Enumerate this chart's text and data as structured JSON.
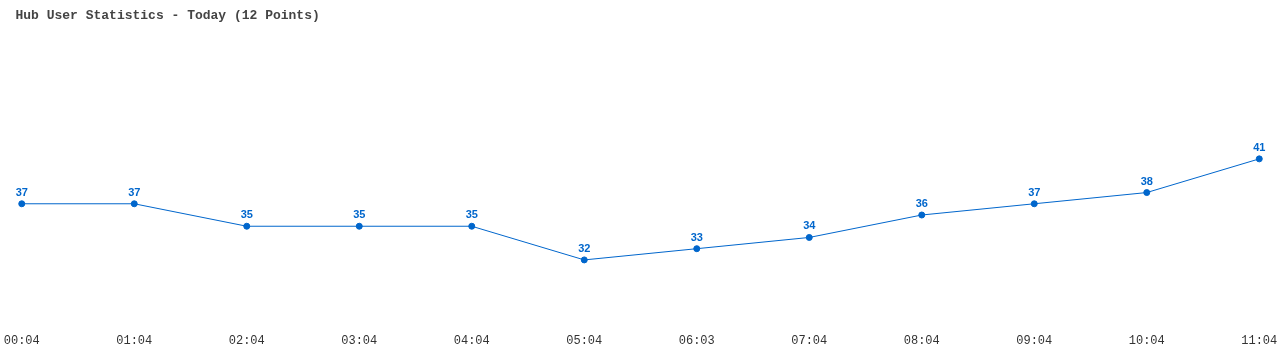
{
  "chart_data": {
    "type": "line",
    "title": "Hub User Statistics - Today (12 Points)",
    "categories": [
      "00:04",
      "01:04",
      "02:04",
      "03:04",
      "04:04",
      "05:04",
      "06:03",
      "07:04",
      "08:04",
      "09:04",
      "10:04",
      "11:04"
    ],
    "series": [
      {
        "color": "#0066cc",
        "values": [
          37,
          37,
          35,
          35,
          35,
          32,
          33,
          34,
          36,
          37,
          38,
          41
        ]
      }
    ],
    "data_labels": true,
    "marker": "circle",
    "grid": false
  }
}
